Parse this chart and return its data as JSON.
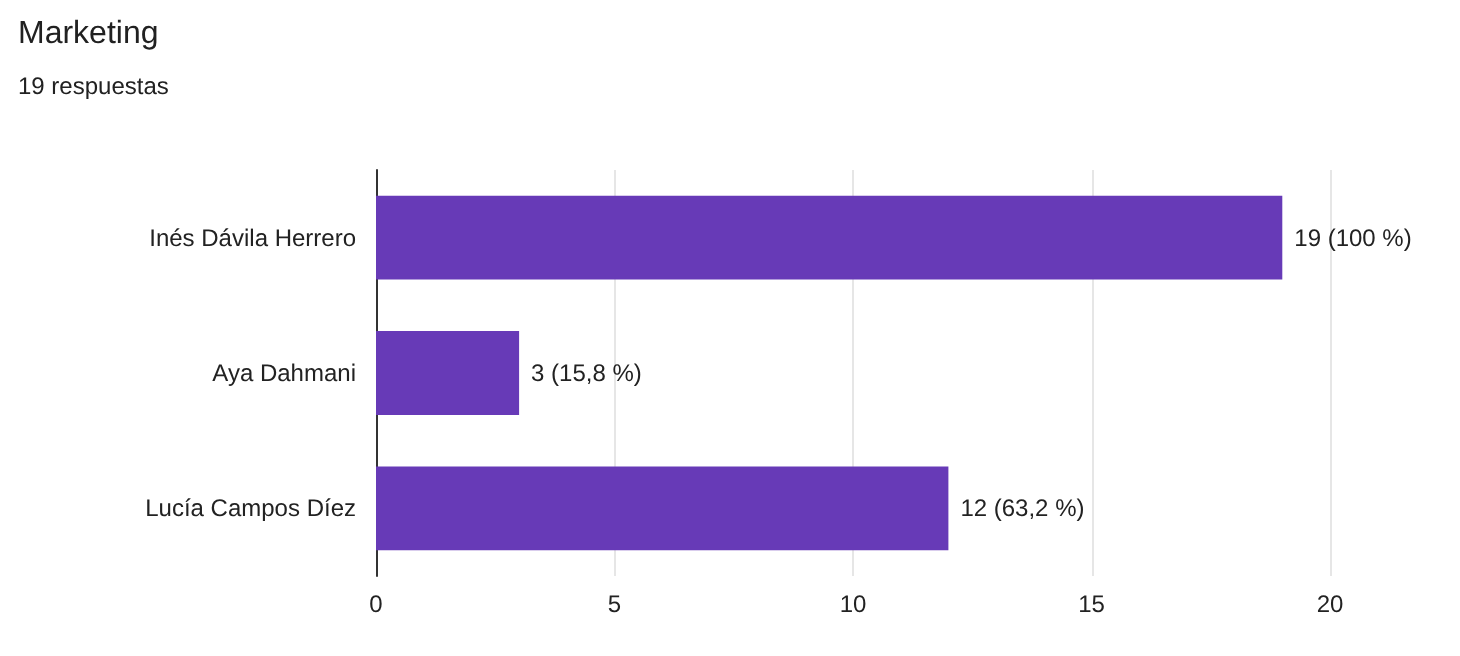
{
  "chart_data": {
    "type": "bar",
    "orientation": "horizontal",
    "title": "Marketing",
    "subtitle": "19 respuestas",
    "categories": [
      "Inés Dávila Herrero",
      "Aya Dahmani",
      "Lucía Campos Díez"
    ],
    "values": [
      19,
      3,
      12
    ],
    "color": "#673ab7",
    "value_labels": [
      "19 (100 %)",
      "3 (15,8 %)",
      "12 (63,2 %)"
    ],
    "xlim": [
      0,
      20
    ],
    "xticks": [
      0,
      5,
      10,
      15,
      20
    ],
    "grid": "x"
  }
}
